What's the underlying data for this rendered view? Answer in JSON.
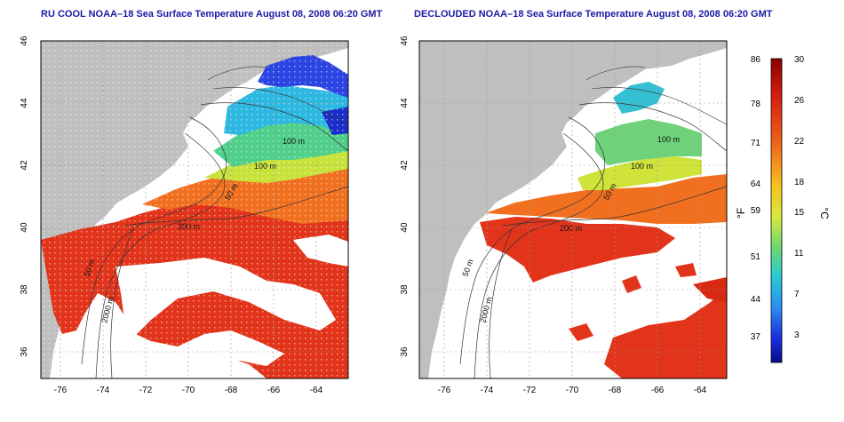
{
  "panels": [
    {
      "title": "RU COOL NOAA–18 Sea Surface Temperature August 08, 2008 06:20 GMT",
      "contour_labels": [
        "100 m",
        "100 m",
        "50 m",
        "200 m",
        "50 m",
        "2000 m"
      ]
    },
    {
      "title": "DECLOUDED NOAA–18 Sea Surface Temperature August 08, 2008 06:20 GMT",
      "contour_labels": [
        "100 m",
        "100 m",
        "50 m",
        "200 m",
        "50 m",
        "2000 m"
      ]
    }
  ],
  "axes": {
    "x_ticks": [
      "-76",
      "-74",
      "-72",
      "-70",
      "-68",
      "-66",
      "-64"
    ],
    "y_ticks": [
      "46",
      "44",
      "42",
      "40",
      "38",
      "36"
    ]
  },
  "colorbar": {
    "f_label": "°F",
    "c_label": "°C",
    "f_ticks": [
      "86",
      "78",
      "71",
      "64",
      "59",
      "51",
      "44",
      "37"
    ],
    "c_ticks": [
      "30",
      "26",
      "22",
      "18",
      "15",
      "11",
      "7",
      "3"
    ]
  },
  "colors": {
    "land": "#bfbfbf",
    "cloud": "#ffffff",
    "warm": "#dd2a10",
    "cool": "#2e3fe0"
  }
}
